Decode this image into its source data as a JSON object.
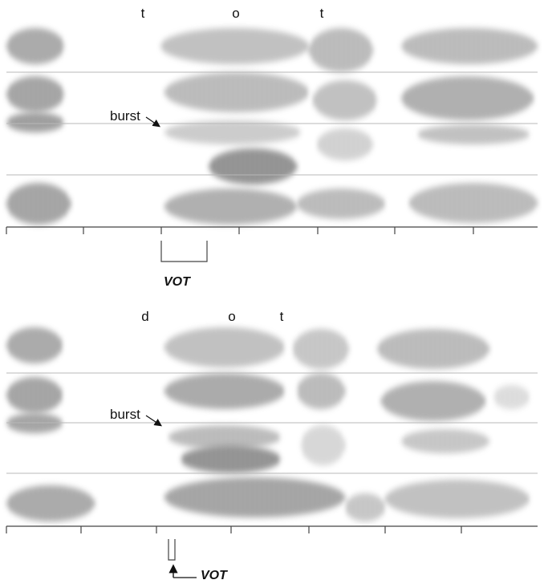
{
  "panels": [
    {
      "segments": [
        "t",
        "o",
        "t"
      ],
      "burst_label": "burst",
      "vot_label": "VOT"
    },
    {
      "segments": [
        "d",
        "o",
        "t"
      ],
      "burst_label": "burst",
      "vot_label": "VOT"
    }
  ]
}
